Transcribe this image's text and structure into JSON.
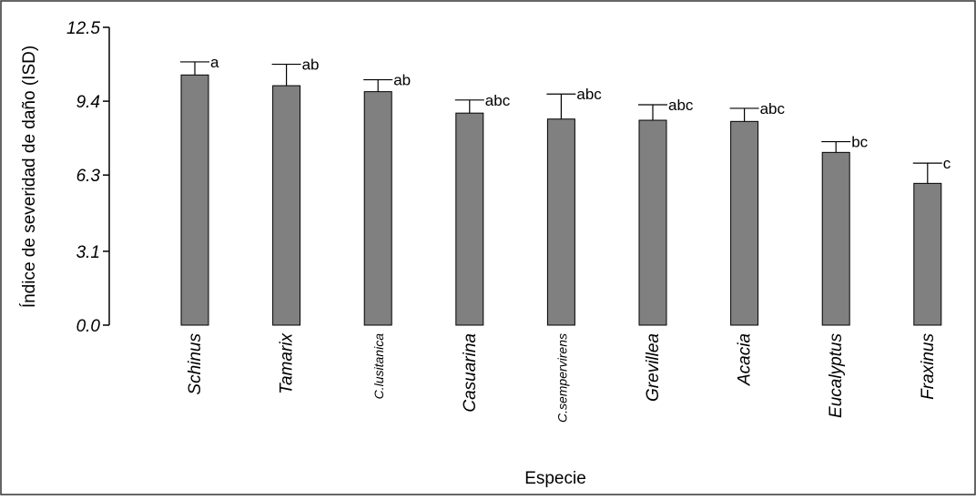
{
  "chart_data": {
    "type": "bar",
    "title": "",
    "xlabel": "Especie",
    "ylabel": "Índice de severidad de daño (ISD)",
    "ylim": [
      0,
      12.5
    ],
    "yticks": [
      0.0,
      3.1,
      6.3,
      9.4,
      12.5
    ],
    "ytick_labels": [
      "0.0",
      "3.1",
      "6.3",
      "9.4",
      "12.5"
    ],
    "grid": false,
    "legend": "none",
    "bar_color": "#808080",
    "categories": [
      "Schinus",
      "Tamarix",
      "C.lusitanica",
      "Casuarina",
      "C.sempervirens",
      "Grevillea",
      "Acacia",
      "Eucalyptus",
      "Fraxinus"
    ],
    "values": [
      10.5,
      10.05,
      9.8,
      8.9,
      8.65,
      8.6,
      8.55,
      7.25,
      5.95
    ],
    "error": [
      0.55,
      0.9,
      0.5,
      0.55,
      1.05,
      0.65,
      0.55,
      0.45,
      0.85
    ],
    "significance": [
      "a",
      "ab",
      "ab",
      "abc",
      "abc",
      "abc",
      "abc",
      "bc",
      "c"
    ]
  }
}
